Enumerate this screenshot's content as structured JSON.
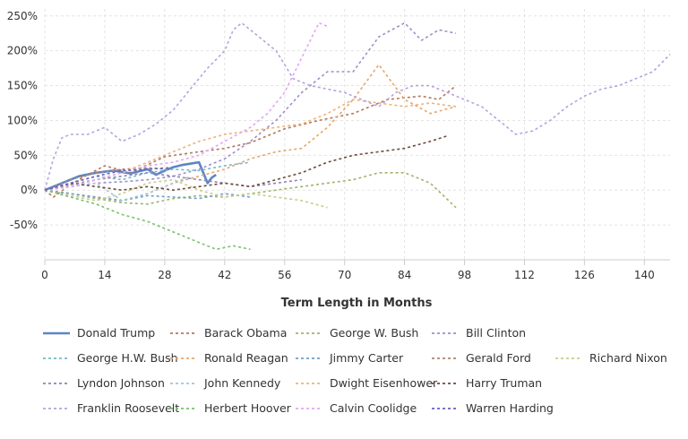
{
  "chart_data": {
    "type": "line",
    "title": "",
    "xlabel": "Term Length in Months",
    "ylabel": "",
    "xlim": [
      0,
      146
    ],
    "ylim": [
      -100,
      260
    ],
    "x_ticks": [
      0,
      14,
      28,
      42,
      56,
      70,
      84,
      98,
      112,
      126,
      140
    ],
    "y_ticks": [
      -50,
      0,
      50,
      100,
      150,
      200,
      250
    ],
    "y_tick_suffix": "%",
    "grid": true,
    "legend_position": "bottom",
    "series": [
      {
        "name": "Donald Trump",
        "color": "#5b86c5",
        "dashed": false,
        "x": [
          0,
          4,
          8,
          12,
          16,
          20,
          24,
          26,
          28,
          30,
          32,
          34,
          36,
          37,
          38,
          39,
          40
        ],
        "y": [
          0,
          10,
          20,
          25,
          28,
          24,
          30,
          22,
          28,
          33,
          36,
          38,
          40,
          25,
          10,
          18,
          22
        ]
      },
      {
        "name": "Barack Obama",
        "color": "#b07a5e",
        "dashed": true,
        "x": [
          0,
          2,
          6,
          10,
          14,
          20,
          28,
          36,
          42,
          48,
          56,
          64,
          72,
          80,
          88,
          92,
          96
        ],
        "y": [
          0,
          -10,
          8,
          22,
          35,
          25,
          48,
          55,
          60,
          68,
          88,
          100,
          110,
          130,
          135,
          130,
          150
        ]
      },
      {
        "name": "George W. Bush",
        "color": "#9fb56b",
        "dashed": true,
        "x": [
          0,
          6,
          12,
          18,
          24,
          30,
          36,
          42,
          48,
          54,
          60,
          66,
          72,
          78,
          84,
          90,
          96
        ],
        "y": [
          0,
          -5,
          -12,
          -18,
          -20,
          -12,
          -8,
          -10,
          -5,
          0,
          5,
          10,
          15,
          25,
          25,
          10,
          -25
        ]
      },
      {
        "name": "Bill Clinton",
        "color": "#9e8fc7",
        "dashed": true,
        "x": [
          0,
          6,
          12,
          18,
          24,
          30,
          36,
          42,
          48,
          54,
          60,
          66,
          72,
          78,
          84,
          88,
          92,
          96
        ],
        "y": [
          0,
          5,
          10,
          12,
          15,
          20,
          30,
          45,
          70,
          100,
          140,
          170,
          170,
          220,
          240,
          215,
          230,
          225
        ]
      },
      {
        "name": "George H.W. Bush",
        "color": "#77b7cc",
        "dashed": true,
        "x": [
          0,
          6,
          12,
          18,
          24,
          30,
          36,
          42,
          48
        ],
        "y": [
          0,
          10,
          20,
          15,
          25,
          30,
          28,
          35,
          40
        ]
      },
      {
        "name": "Ronald Reagan",
        "color": "#e7a56a",
        "dashed": true,
        "x": [
          0,
          6,
          12,
          18,
          24,
          30,
          36,
          42,
          48,
          54,
          60,
          66,
          72,
          78,
          84,
          90,
          96
        ],
        "y": [
          0,
          -5,
          -10,
          -15,
          -5,
          10,
          20,
          30,
          45,
          55,
          60,
          90,
          130,
          180,
          130,
          110,
          120
        ]
      },
      {
        "name": "Jimmy Carter",
        "color": "#6f9fcc",
        "dashed": true,
        "x": [
          0,
          6,
          12,
          18,
          24,
          30,
          36,
          42,
          48
        ],
        "y": [
          0,
          -5,
          -10,
          -15,
          -8,
          -10,
          -12,
          -5,
          -10
        ]
      },
      {
        "name": "Gerald Ford",
        "color": "#b5836b",
        "dashed": true,
        "x": [
          0,
          6,
          12,
          18,
          24,
          29
        ],
        "y": [
          0,
          15,
          25,
          30,
          32,
          30
        ]
      },
      {
        "name": "Richard Nixon",
        "color": "#c6cc8f",
        "dashed": true,
        "x": [
          0,
          6,
          12,
          18,
          24,
          30,
          36,
          42,
          48,
          54,
          60,
          66
        ],
        "y": [
          0,
          -8,
          -15,
          -5,
          10,
          15,
          0,
          -10,
          -5,
          -10,
          -15,
          -25
        ]
      },
      {
        "name": "Lyndon Johnson",
        "color": "#8a85b5",
        "dashed": true,
        "x": [
          0,
          6,
          12,
          18,
          24,
          30,
          36,
          42,
          48,
          54,
          60
        ],
        "y": [
          0,
          8,
          15,
          20,
          25,
          20,
          15,
          10,
          5,
          10,
          15
        ]
      },
      {
        "name": "John Kennedy",
        "color": "#9cc4e0",
        "dashed": true,
        "x": [
          0,
          6,
          12,
          18,
          24,
          30,
          34
        ],
        "y": [
          0,
          5,
          10,
          -15,
          -5,
          10,
          20
        ]
      },
      {
        "name": "Dwight Eisenhower",
        "color": "#efb27a",
        "dashed": true,
        "x": [
          0,
          6,
          12,
          18,
          24,
          30,
          36,
          42,
          48,
          54,
          60,
          66,
          72,
          78,
          84,
          90,
          96
        ],
        "y": [
          0,
          5,
          15,
          25,
          40,
          55,
          70,
          80,
          85,
          90,
          95,
          110,
          130,
          125,
          120,
          125,
          120
        ]
      },
      {
        "name": "Harry Truman",
        "color": "#6e4a3a",
        "dashed": true,
        "x": [
          0,
          6,
          12,
          18,
          24,
          30,
          36,
          42,
          48,
          54,
          60,
          66,
          72,
          78,
          84,
          90,
          94
        ],
        "y": [
          0,
          10,
          5,
          0,
          5,
          0,
          5,
          10,
          5,
          15,
          25,
          40,
          50,
          55,
          60,
          70,
          78
        ]
      },
      {
        "name": "Franklin Roosevelt",
        "color": "#b5a3dc",
        "dashed": true,
        "x": [
          0,
          2,
          4,
          6,
          10,
          14,
          18,
          22,
          26,
          30,
          34,
          38,
          42,
          44,
          46,
          50,
          54,
          58,
          62,
          66,
          70,
          74,
          78,
          82,
          86,
          90,
          94,
          98,
          102,
          106,
          110,
          114,
          118,
          122,
          126,
          130,
          134,
          138,
          142,
          146
        ],
        "y": [
          0,
          45,
          75,
          80,
          80,
          90,
          70,
          80,
          95,
          115,
          145,
          175,
          200,
          230,
          240,
          220,
          200,
          160,
          150,
          145,
          140,
          130,
          120,
          140,
          150,
          150,
          140,
          130,
          120,
          100,
          80,
          85,
          100,
          120,
          135,
          145,
          150,
          160,
          170,
          195
        ]
      },
      {
        "name": "Herbert Hoover",
        "color": "#7cbf6b",
        "dashed": true,
        "x": [
          0,
          6,
          12,
          18,
          24,
          30,
          36,
          40,
          44,
          48
        ],
        "y": [
          0,
          -10,
          -20,
          -35,
          -45,
          -60,
          -75,
          -85,
          -80,
          -85
        ]
      },
      {
        "name": "Calvin Coolidge",
        "color": "#e0a7f0",
        "dashed": true,
        "x": [
          0,
          6,
          12,
          18,
          24,
          30,
          36,
          42,
          48,
          52,
          56,
          60,
          64,
          66
        ],
        "y": [
          0,
          5,
          15,
          25,
          35,
          40,
          50,
          70,
          90,
          110,
          140,
          190,
          240,
          235
        ]
      },
      {
        "name": "Warren Harding",
        "color": "#6560c4",
        "dashed": true,
        "x": [
          0,
          6,
          12,
          18,
          24,
          29
        ],
        "y": [
          0,
          10,
          20,
          28,
          30,
          32
        ]
      }
    ]
  }
}
